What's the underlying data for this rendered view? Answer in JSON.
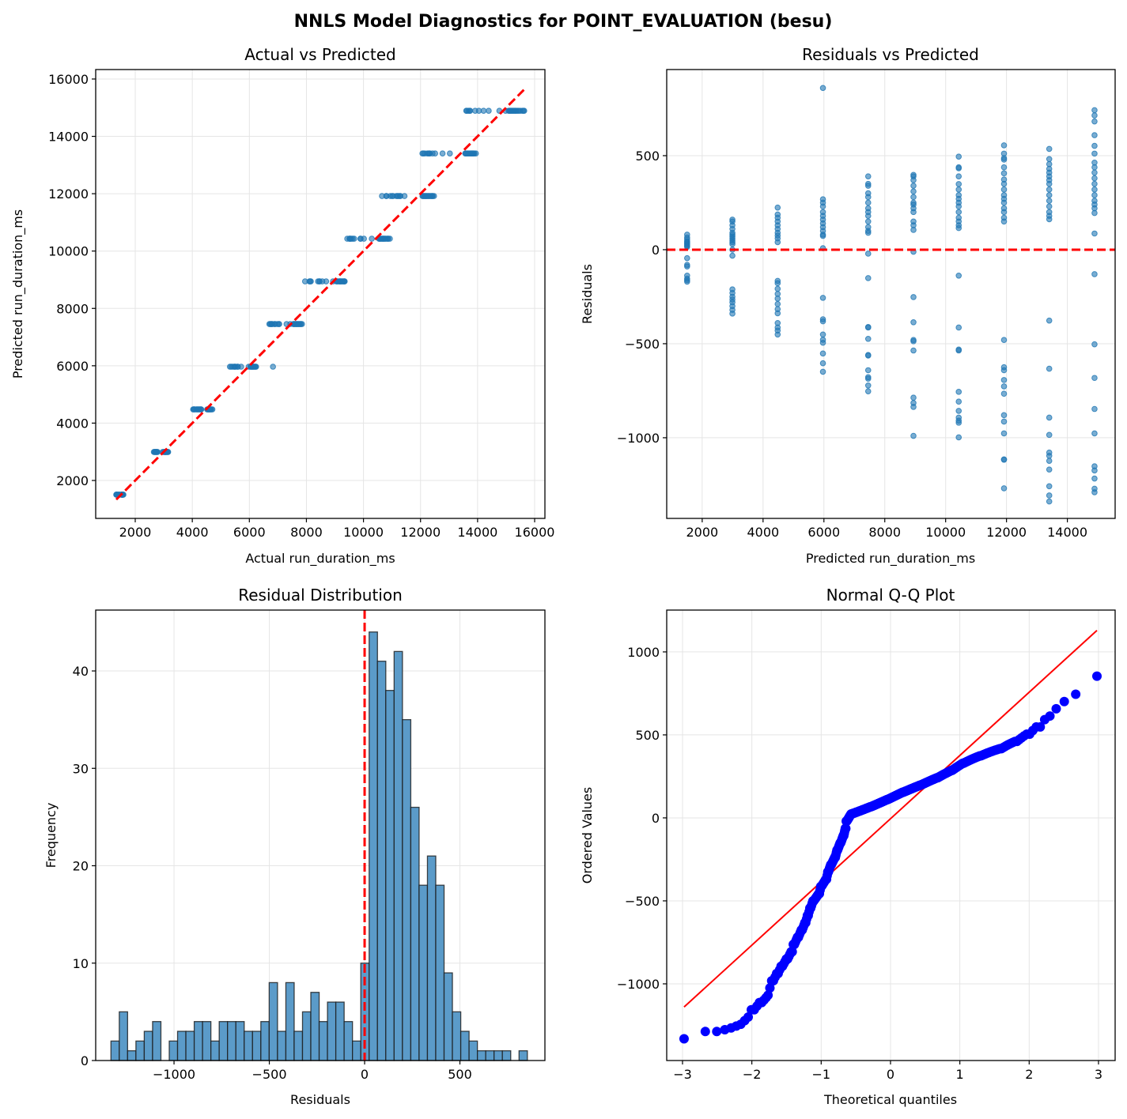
{
  "title": "NNLS Model Diagnostics for POINT_EVALUATION (besu)",
  "colors": {
    "point": "#1f77b4",
    "ref_line": "#ff0000",
    "qq_point": "#0000ff",
    "grid": "#e5e5e5"
  },
  "chart_data": [
    {
      "id": "actual_vs_predicted",
      "type": "scatter",
      "title": "Actual vs Predicted",
      "xlabel": "Actual run_duration_ms",
      "ylabel": "Predicted run_duration_ms",
      "xlim": [
        614,
        16360
      ],
      "ylim": [
        677,
        16330
      ],
      "xticks": [
        2000,
        4000,
        6000,
        8000,
        10000,
        12000,
        14000,
        16000
      ],
      "yticks": [
        2000,
        4000,
        6000,
        8000,
        10000,
        12000,
        14000,
        16000
      ],
      "grid": true,
      "reference_line": "y = x (red dashed)",
      "note_points": "x = predicted + residual, y = predicted (from residual groups below)"
    },
    {
      "id": "residuals_vs_predicted",
      "type": "scatter",
      "title": "Residuals vs Predicted",
      "xlabel": "Predicted run_duration_ms",
      "ylabel": "Residuals",
      "xlim": [
        834,
        15570
      ],
      "ylim": [
        -1429,
        958
      ],
      "xticks": [
        2000,
        4000,
        6000,
        8000,
        10000,
        12000,
        14000
      ],
      "yticks": [
        -1000,
        -500,
        0,
        500
      ],
      "grid": true,
      "reference_line": "y = 0 (red dashed)",
      "groups": [
        {
          "predicted": 1505,
          "residuals": [
            80,
            65,
            55,
            45,
            40,
            35,
            30,
            25,
            20,
            15,
            -45,
            -81,
            -89,
            -138,
            -154,
            -162,
            -170
          ]
        },
        {
          "predicted": 2993,
          "residuals": [
            160,
            150,
            130,
            110,
            90,
            80,
            70,
            60,
            50,
            40,
            30,
            0,
            -32,
            -211,
            -230,
            -250,
            -265,
            -280,
            -300,
            -320,
            -340
          ]
        },
        {
          "predicted": 4480,
          "residuals": [
            224,
            187,
            170,
            150,
            130,
            110,
            90,
            75,
            60,
            40,
            -166,
            -178,
            -208,
            -235,
            -260,
            -289,
            -316,
            -338,
            -390,
            -414,
            -430,
            -451
          ]
        },
        {
          "predicted": 5968,
          "residuals": [
            860,
            268,
            250,
            230,
            200,
            180,
            160,
            140,
            120,
            100,
            80,
            73,
            8,
            -256,
            -370,
            -381,
            -451,
            -479,
            -495,
            -552,
            -604,
            -649
          ]
        },
        {
          "predicted": 7455,
          "residuals": [
            390,
            350,
            340,
            300,
            280,
            250,
            220,
            200,
            180,
            150,
            120,
            100,
            90,
            -21,
            -151,
            -411,
            -414,
            -474,
            -560,
            -563,
            -641,
            -678,
            -686,
            -722,
            -753
          ]
        },
        {
          "predicted": 8943,
          "residuals": [
            398,
            390,
            370,
            340,
            310,
            280,
            250,
            240,
            220,
            200,
            150,
            130,
            105,
            -11,
            -252,
            -386,
            -480,
            -487,
            -536,
            -787,
            -815,
            -836,
            -990
          ]
        },
        {
          "predicted": 10430,
          "residuals": [
            495,
            438,
            433,
            390,
            349,
            320,
            290,
            270,
            250,
            230,
            200,
            170,
            150,
            130,
            115,
            -138,
            -414,
            -531,
            -536,
            -756,
            -808,
            -857,
            -893,
            -909,
            -920,
            -998
          ]
        },
        {
          "predicted": 11918,
          "residuals": [
            555,
            511,
            487,
            479,
            438,
            406,
            373,
            350,
            320,
            290,
            270,
            250,
            220,
            200,
            170,
            150,
            -480,
            -625,
            -641,
            -693,
            -727,
            -766,
            -880,
            -914,
            -977,
            -1115,
            -1117,
            -1269
          ]
        },
        {
          "predicted": 13405,
          "residuals": [
            536,
            482,
            455,
            430,
            410,
            390,
            370,
            350,
            320,
            290,
            260,
            230,
            200,
            180,
            162,
            -377,
            -633,
            -893,
            -985,
            -1079,
            -1096,
            -1123,
            -1169,
            -1258,
            -1307,
            -1339
          ]
        },
        {
          "predicted": 14893,
          "residuals": [
            742,
            714,
            682,
            609,
            552,
            511,
            463,
            438,
            410,
            380,
            350,
            320,
            290,
            260,
            240,
            220,
            195,
            86,
            -130,
            -503,
            -682,
            -847,
            -977,
            -1152,
            -1174,
            -1217,
            -1271,
            -1290
          ]
        }
      ]
    },
    {
      "id": "residual_distribution",
      "type": "bar",
      "title": "Residual Distribution",
      "xlabel": "Residuals",
      "ylabel": "Frequency",
      "xlim": [
        -1411,
        946
      ],
      "ylim": [
        0,
        46.25
      ],
      "xticks": [
        -1000,
        -500,
        0,
        500
      ],
      "yticks": [
        0,
        10,
        20,
        30,
        40
      ],
      "grid": true,
      "bin_range": [
        -1331,
        854
      ],
      "counts": [
        2,
        5,
        1,
        2,
        3,
        4,
        0,
        2,
        3,
        3,
        4,
        4,
        2,
        4,
        4,
        4,
        3,
        3,
        4,
        8,
        3,
        8,
        3,
        5,
        7,
        4,
        6,
        6,
        4,
        2,
        10,
        44,
        41,
        38,
        42,
        35,
        26,
        18,
        21,
        18,
        9,
        5,
        3,
        2,
        1,
        1,
        1,
        1,
        0,
        1
      ],
      "reference_line": "x = 0 (red dashed)"
    },
    {
      "id": "normal_qq",
      "type": "scatter",
      "title": "Normal Q-Q Plot",
      "xlabel": "Theoretical quantiles",
      "ylabel": "Ordered Values",
      "xlim": [
        -3.228,
        3.24
      ],
      "ylim": [
        -1462,
        1252
      ],
      "xticks": [
        -3,
        -2,
        -1,
        0,
        1,
        2,
        3
      ],
      "yticks": [
        -1000,
        -500,
        0,
        500,
        1000
      ],
      "grid": true,
      "fit_line": {
        "slope": 381,
        "intercept": -5
      }
    }
  ]
}
